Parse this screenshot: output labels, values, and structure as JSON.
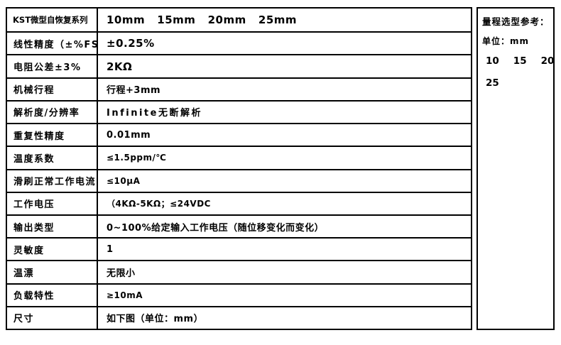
{
  "page": {
    "background_color": "#ffffff",
    "text_color": "#000000",
    "border_color": "#000000"
  },
  "table": {
    "rows": [
      {
        "label": "KST微型自恢复系列",
        "value": "10mm   15mm   20mm   25mm"
      },
      {
        "label": "线性精度（±%FS）",
        "value": "±0.25%"
      },
      {
        "label": "电阻公差±3%",
        "value": "2KΩ"
      },
      {
        "label": "机械行程",
        "value": "行程+3mm"
      },
      {
        "label": "解析度/分辨率",
        "value": "Infinite无断解析"
      },
      {
        "label": "重复性精度",
        "value": "0.01mm"
      },
      {
        "label": "温度系数",
        "value": "≤1.5ppm/℃"
      },
      {
        "label": "滑刷正常工作电流",
        "value": "≤10μA"
      },
      {
        "label": "工作电压",
        "value": "（4KΩ-5KΩ；≤24VDC"
      },
      {
        "label": "输出类型",
        "value": "0~100%给定输入工作电压（随位移变化而变化）"
      },
      {
        "label": "灵敏度",
        "value": "1"
      },
      {
        "label": "温漂",
        "value": "无限小"
      },
      {
        "label": "负载特性",
        "value": "≥10mA"
      },
      {
        "label": "尺寸",
        "value": "如下图（单位：mm）"
      }
    ]
  },
  "side_panel": {
    "title": "量程选型参考：",
    "unit_label": "单位：mm",
    "options": [
      "10",
      "15",
      "20",
      "25"
    ]
  }
}
